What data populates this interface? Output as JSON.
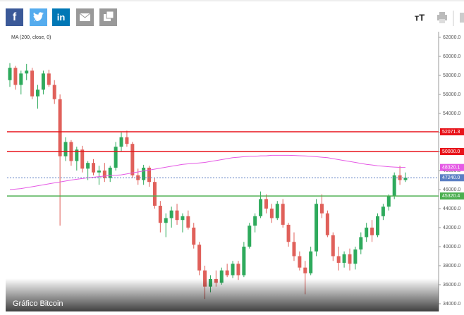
{
  "toolbar": {
    "facebook": "f",
    "linkedin": "in",
    "font_size": "тT"
  },
  "caption": "Gráfico Bitcoin",
  "chart_data": {
    "type": "candlestick",
    "indicator_label": "MA (200, close, 0)",
    "up_color": "#2eaa5c",
    "down_color": "#e0605a",
    "ma_color": "#e55ae5",
    "ylim": [
      34000,
      62000
    ],
    "yticks": [
      {
        "value": 34000,
        "label": "34000.0"
      },
      {
        "value": 36000,
        "label": "36000.0"
      },
      {
        "value": 38000,
        "label": "38000.0"
      },
      {
        "value": 40000,
        "label": "40000.0"
      },
      {
        "value": 42000,
        "label": "42000.0"
      },
      {
        "value": 44000,
        "label": "44000.0"
      },
      {
        "value": 46000,
        "label": "46000.0"
      },
      {
        "value": 48000,
        "label": "48000.0"
      },
      {
        "value": 50000,
        "label": "50000.0"
      },
      {
        "value": 52000,
        "label": "52000.0"
      },
      {
        "value": 54000,
        "label": "54000.0"
      },
      {
        "value": 56000,
        "label": "56000.0"
      },
      {
        "value": 58000,
        "label": "58000.0"
      },
      {
        "value": 60000,
        "label": "60000.0"
      },
      {
        "value": 62000,
        "label": "62000.0"
      }
    ],
    "levels": [
      {
        "value": 52071.3,
        "color": "#e8141b"
      },
      {
        "value": 50000,
        "label": "50000.0",
        "color": "#e8141b"
      },
      {
        "value": 45320.4,
        "color": "#4caf50"
      },
      {
        "value": 48320.1,
        "color": "#e55ae5",
        "dashed": false,
        "line": false
      },
      {
        "value": 47240,
        "label": "47240.0",
        "color": "#5b7fc4",
        "dashed": true
      }
    ],
    "ohlc": [
      [
        57500,
        59300,
        56800,
        58800
      ],
      [
        58800,
        59000,
        56500,
        57000
      ],
      [
        57000,
        58500,
        56000,
        58200
      ],
      [
        58200,
        59200,
        57500,
        58500
      ],
      [
        58500,
        58800,
        55500,
        55800
      ],
      [
        55800,
        57000,
        54500,
        56500
      ],
      [
        56500,
        58500,
        56000,
        58200
      ],
      [
        58200,
        58600,
        56800,
        57000
      ],
      [
        57000,
        57500,
        55000,
        55500
      ],
      [
        55500,
        56000,
        42200,
        49500
      ],
      [
        49500,
        51500,
        49000,
        51000
      ],
      [
        51000,
        51200,
        48500,
        49000
      ],
      [
        49000,
        50500,
        48000,
        50200
      ],
      [
        50200,
        50600,
        47800,
        48200
      ],
      [
        48200,
        49000,
        47000,
        48800
      ],
      [
        48800,
        49200,
        47500,
        47800
      ],
      [
        47800,
        48500,
        46500,
        48000
      ],
      [
        48000,
        48800,
        46800,
        47200
      ],
      [
        47200,
        48500,
        46800,
        48300
      ],
      [
        48300,
        51000,
        48000,
        50500
      ],
      [
        50500,
        52000,
        50000,
        51500
      ],
      [
        51500,
        52200,
        50500,
        50800
      ],
      [
        50800,
        51000,
        47200,
        47500
      ],
      [
        47500,
        48200,
        46500,
        47000
      ],
      [
        47000,
        48600,
        46500,
        48300
      ],
      [
        48300,
        48500,
        46300,
        46800
      ],
      [
        46800,
        47200,
        44000,
        44300
      ],
      [
        44300,
        44800,
        41500,
        42500
      ],
      [
        42500,
        43500,
        41000,
        43000
      ],
      [
        43000,
        44200,
        42000,
        43800
      ],
      [
        43800,
        44500,
        42300,
        42800
      ],
      [
        42800,
        43500,
        41500,
        43200
      ],
      [
        43200,
        43800,
        41800,
        42000
      ],
      [
        42000,
        42500,
        39800,
        40200
      ],
      [
        40200,
        40500,
        37000,
        37500
      ],
      [
        37500,
        38000,
        34500,
        35800
      ],
      [
        35800,
        37000,
        35200,
        36600
      ],
      [
        36600,
        37500,
        35800,
        36200
      ],
      [
        36200,
        37800,
        36000,
        37500
      ],
      [
        37500,
        38200,
        36800,
        37000
      ],
      [
        37000,
        38500,
        36700,
        38200
      ],
      [
        38200,
        38500,
        36500,
        37000
      ],
      [
        37000,
        40500,
        36800,
        40000
      ],
      [
        40000,
        42500,
        39800,
        42200
      ],
      [
        42200,
        43500,
        41500,
        43200
      ],
      [
        43200,
        45800,
        43000,
        45000
      ],
      [
        45000,
        45500,
        43500,
        44000
      ],
      [
        44000,
        44500,
        42500,
        43000
      ],
      [
        43000,
        44800,
        42800,
        44500
      ],
      [
        44500,
        45000,
        42000,
        42300
      ],
      [
        42300,
        42500,
        40000,
        40500
      ],
      [
        40500,
        41500,
        38500,
        39000
      ],
      [
        39000,
        39500,
        37500,
        37800
      ],
      [
        37800,
        38500,
        35000,
        37200
      ],
      [
        37200,
        40000,
        37000,
        39500
      ],
      [
        39500,
        45000,
        39000,
        44500
      ],
      [
        44500,
        45500,
        43000,
        43500
      ],
      [
        43500,
        43800,
        41000,
        41200
      ],
      [
        41200,
        41500,
        38500,
        39000
      ],
      [
        39000,
        40000,
        37500,
        38300
      ],
      [
        38300,
        39500,
        37800,
        39200
      ],
      [
        39200,
        39800,
        37500,
        38200
      ],
      [
        38200,
        40000,
        37600,
        39700
      ],
      [
        39700,
        41500,
        39200,
        41000
      ],
      [
        41000,
        42500,
        40500,
        42000
      ],
      [
        42000,
        42800,
        40500,
        41200
      ],
      [
        41200,
        43500,
        41000,
        43200
      ],
      [
        43200,
        44500,
        42800,
        44200
      ],
      [
        44200,
        45500,
        43800,
        45300
      ],
      [
        45300,
        47800,
        45000,
        47500
      ],
      [
        47500,
        48500,
        46500,
        47000
      ],
      [
        47000,
        47800,
        46800,
        47240
      ]
    ],
    "ma": [
      46000,
      46050,
      46100,
      46200,
      46300,
      46400,
      46500,
      46600,
      46700,
      46800,
      46900,
      47000,
      47080,
      47160,
      47240,
      47300,
      47360,
      47420,
      47480,
      47500,
      47550,
      47650,
      47750,
      47850,
      47950,
      48050,
      48150,
      48250,
      48350,
      48450,
      48550,
      48650,
      48700,
      48750,
      48800,
      48850,
      48950,
      49050,
      49150,
      49250,
      49350,
      49400,
      49450,
      49500,
      49500,
      49550,
      49550,
      49600,
      49600,
      49600,
      49600,
      49580,
      49560,
      49540,
      49500,
      49450,
      49400,
      49350,
      49250,
      49150,
      49050,
      48950,
      48850,
      48750,
      48650,
      48580,
      48500,
      48450,
      48400,
      48360,
      48330,
      48320
    ]
  }
}
